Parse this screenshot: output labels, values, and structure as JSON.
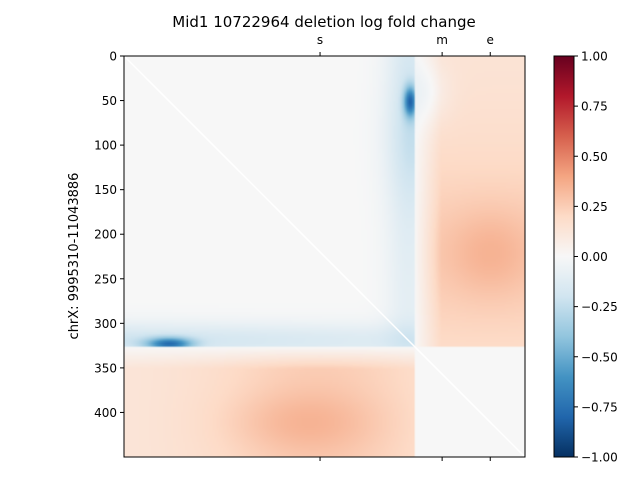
{
  "chart_data": {
    "type": "heatmap",
    "title": "Mid1 10722964 deletion log fold change",
    "ylabel": "chrX: 9995310-11043886",
    "matrix_size": 450,
    "y_ticks": [
      0,
      50,
      100,
      150,
      200,
      250,
      300,
      350,
      400
    ],
    "top_ticks": [
      {
        "label": "s",
        "position": 220
      },
      {
        "label": "m",
        "position": 357
      },
      {
        "label": "e",
        "position": 411
      }
    ],
    "bottom_ticks": [
      220,
      357,
      411
    ],
    "colorbar": {
      "colormap": "RdBu_r",
      "min": -1.0,
      "max": 1.0,
      "ticks": [
        1.0,
        0.75,
        0.5,
        0.25,
        0.0,
        -0.25,
        -0.5,
        -0.75,
        -1.0
      ],
      "tick_labels": [
        "1.00",
        "0.75",
        "0.50",
        "0.25",
        "0.00",
        "−0.25",
        "−0.50",
        "−0.75",
        "−1.00"
      ]
    },
    "features": {
      "diagonal": "white line from top-left to bottom-right",
      "breakpoint": 325,
      "regions": [
        {
          "rows": [
            0,
            325
          ],
          "cols": [
            0,
            325
          ],
          "value": 0.0
        },
        {
          "rows": [
            0,
            325
          ],
          "cols": [
            280,
            325
          ],
          "value": -0.15,
          "peak": {
            "row": 50,
            "col": 320,
            "value": -0.6
          }
        },
        {
          "rows": [
            0,
            325
          ],
          "cols": [
            325,
            450
          ],
          "value": 0.25,
          "peak": {
            "row": 220,
            "col": 410,
            "value": 0.35
          }
        },
        {
          "rows": [
            280,
            350
          ],
          "cols": [
            0,
            325
          ],
          "value": -0.2,
          "peak": {
            "row": 322,
            "col": 50,
            "value": -0.6
          }
        },
        {
          "rows": [
            325,
            450
          ],
          "cols": [
            0,
            325
          ],
          "value": 0.25,
          "peak": {
            "row": 410,
            "col": 200,
            "value": 0.35
          }
        },
        {
          "rows": [
            325,
            450
          ],
          "cols": [
            325,
            450
          ],
          "value": 0.0
        }
      ]
    }
  }
}
